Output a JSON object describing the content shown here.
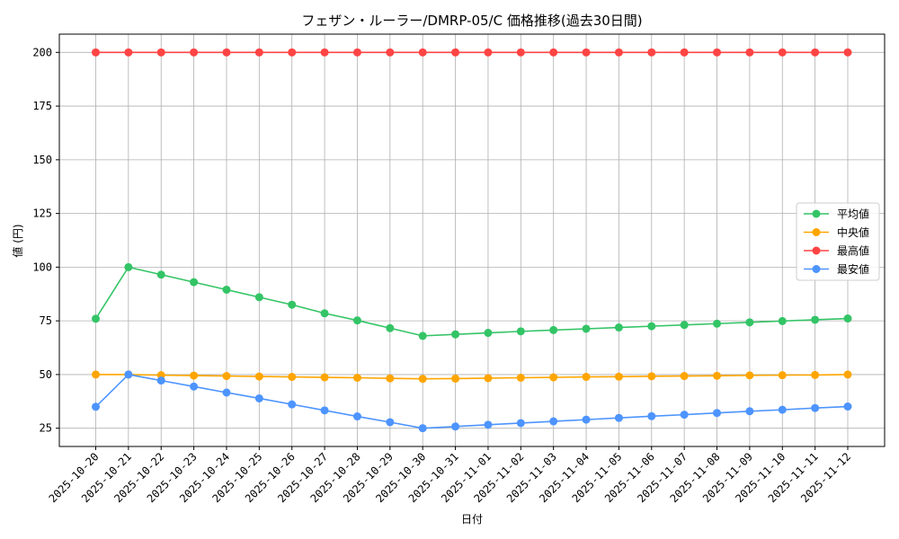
{
  "chart_data": {
    "type": "line",
    "title": "フェザン・ルーラー/DMRP-05/C 価格推移(過去30日間)",
    "xlabel": "日付",
    "ylabel": "値 (円)",
    "ylim": [
      16.5,
      208.5
    ],
    "yticks": [
      25,
      50,
      75,
      100,
      125,
      150,
      175,
      200
    ],
    "grid": true,
    "legend_position": "center-right",
    "categories": [
      "2025-10-20",
      "2025-10-21",
      "2025-10-22",
      "2025-10-23",
      "2025-10-24",
      "2025-10-25",
      "2025-10-26",
      "2025-10-27",
      "2025-10-28",
      "2025-10-29",
      "2025-10-30",
      "2025-10-31",
      "2025-11-01",
      "2025-11-02",
      "2025-11-03",
      "2025-11-04",
      "2025-11-05",
      "2025-11-06",
      "2025-11-07",
      "2025-11-08",
      "2025-11-09",
      "2025-11-10",
      "2025-11-11",
      "2025-11-12"
    ],
    "series": [
      {
        "name": "平均値",
        "color": "#33c466",
        "values": [
          76,
          100,
          96.5,
          93,
          89.5,
          86,
          82.5,
          78.5,
          75.2,
          71.6,
          68,
          68.7,
          69.4,
          70.1,
          70.7,
          71.3,
          71.9,
          72.5,
          73.1,
          73.7,
          74.3,
          74.9,
          75.5,
          76.1
        ]
      },
      {
        "name": "中央値",
        "color": "#ffa500",
        "values": [
          50,
          50,
          49.7,
          49.5,
          49.3,
          49.1,
          48.9,
          48.7,
          48.5,
          48.2,
          48,
          48.1,
          48.3,
          48.5,
          48.7,
          48.9,
          49,
          49.2,
          49.3,
          49.4,
          49.6,
          49.7,
          49.8,
          50
        ]
      },
      {
        "name": "最高値",
        "color": "#ff4444",
        "values": [
          200,
          200,
          200,
          200,
          200,
          200,
          200,
          200,
          200,
          200,
          200,
          200,
          200,
          200,
          200,
          200,
          200,
          200,
          200,
          200,
          200,
          200,
          200,
          200
        ]
      },
      {
        "name": "最安値",
        "color": "#4d94ff",
        "values": [
          35,
          50,
          47.2,
          44.4,
          41.6,
          38.9,
          36.1,
          33.3,
          30.5,
          27.8,
          25,
          25.8,
          26.6,
          27.4,
          28.2,
          29,
          29.8,
          30.6,
          31.3,
          32.1,
          32.9,
          33.6,
          34.4,
          35.1
        ]
      }
    ]
  }
}
